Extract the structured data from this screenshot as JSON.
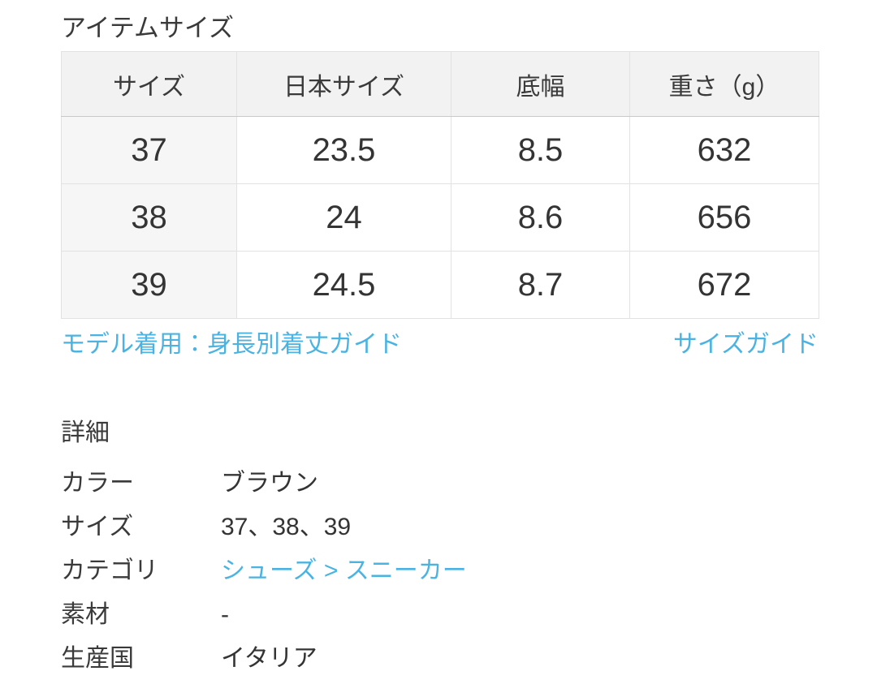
{
  "colors": {
    "link_blue": "#4ab3e2",
    "text": "#3a3a3a",
    "header_bg": "#f2f2f2",
    "first_col_bg": "#f6f6f6",
    "border": "#e2e2e2"
  },
  "item_size": {
    "title": "アイテムサイズ",
    "table": {
      "headers": [
        "サイズ",
        "日本サイズ",
        "底幅",
        "重さ（g）"
      ],
      "rows": [
        [
          "37",
          "23.5",
          "8.5",
          "632"
        ],
        [
          "38",
          "24",
          "8.6",
          "656"
        ],
        [
          "39",
          "24.5",
          "8.7",
          "672"
        ]
      ]
    },
    "model_guide_link": "モデル着用：身長別着丈ガイド",
    "size_guide_link": "サイズガイド"
  },
  "details": {
    "title": "詳細",
    "rows": [
      {
        "label": "カラー",
        "value": "ブラウン"
      },
      {
        "label": "サイズ",
        "value": "37、38、39"
      },
      {
        "label": "カテゴリ",
        "value": "シューズ > スニーカー"
      },
      {
        "label": "素材",
        "value": "-"
      },
      {
        "label": "生産国",
        "value": "イタリア"
      }
    ]
  }
}
